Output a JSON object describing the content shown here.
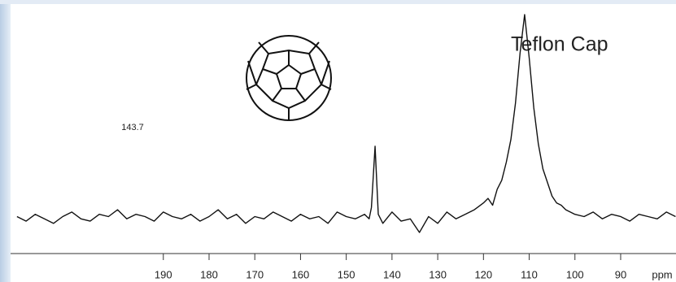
{
  "chart_data": {
    "type": "line",
    "annotations": [
      "143.7",
      "Teflon Cap"
    ],
    "xlabel": "ppm",
    "xlim": [
      223.4,
      77.9
    ],
    "xticks": [
      190,
      180,
      170,
      160,
      150,
      140,
      130,
      120,
      110,
      100,
      90
    ],
    "ylim": [
      0,
      101
    ],
    "series": [
      {
        "color": "#111111",
        "x": [
          222,
          220,
          218,
          216,
          214,
          212,
          210,
          208,
          206,
          204,
          202,
          200,
          198,
          196,
          194,
          192,
          190,
          188,
          186,
          184,
          182,
          180,
          178,
          176,
          174,
          172,
          170,
          168,
          166,
          164,
          162,
          160,
          158,
          156,
          154,
          152,
          150,
          148,
          146,
          145,
          144.5,
          143.7,
          143,
          142,
          140,
          138,
          136,
          134,
          132,
          130,
          128,
          126,
          124,
          122,
          120,
          119,
          118,
          117,
          116,
          115,
          114,
          113,
          112,
          111,
          110,
          109,
          108,
          107,
          106,
          105,
          104,
          103,
          102,
          100,
          98,
          96,
          94,
          92,
          90,
          88,
          86,
          84,
          82,
          80,
          78
        ],
        "values": [
          12,
          10,
          13,
          11,
          9,
          12,
          14,
          11,
          10,
          13,
          12,
          15,
          11,
          13,
          12,
          10,
          14,
          12,
          11,
          13,
          10,
          12,
          15,
          11,
          13,
          9,
          12,
          11,
          14,
          12,
          10,
          13,
          11,
          12,
          9,
          14,
          12,
          11,
          13,
          11,
          16,
          43,
          13,
          9,
          14,
          10,
          11,
          5,
          12,
          9,
          14,
          11,
          13,
          15,
          18,
          20,
          17,
          24,
          28,
          36,
          46,
          62,
          84,
          101,
          82,
          60,
          44,
          33,
          27,
          21,
          18,
          17,
          15,
          13,
          12,
          14,
          11,
          13,
          12,
          10,
          13,
          12,
          11,
          14,
          12
        ]
      }
    ]
  }
}
